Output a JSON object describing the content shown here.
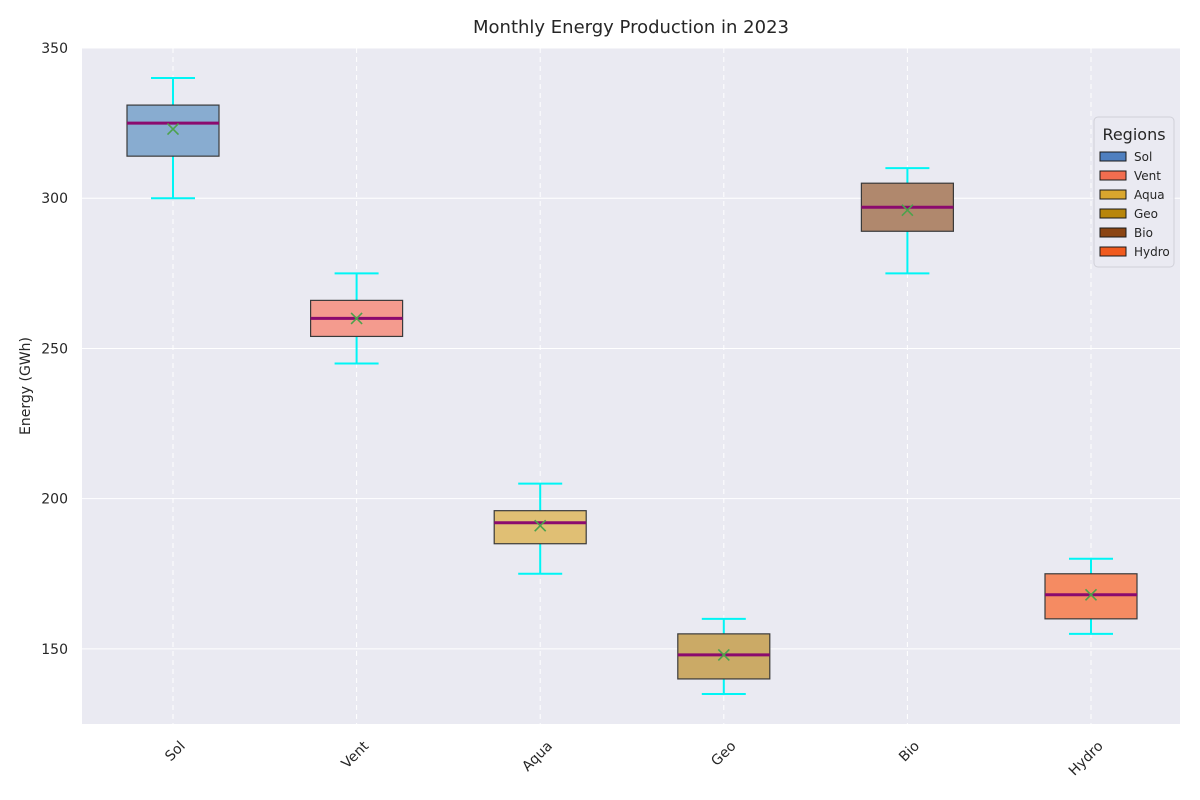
{
  "chart_data": {
    "type": "box",
    "title": "Monthly Energy Production in 2023",
    "xlabel": "",
    "ylabel": "Energy (GWh)",
    "ylim": [
      125,
      350
    ],
    "yticks": [
      150,
      200,
      250,
      300,
      350
    ],
    "grid": true,
    "legend": {
      "title": "Regions",
      "placement": "right",
      "entries": [
        {
          "name": "Sol",
          "color": "#4f7fbf"
        },
        {
          "name": "Vent",
          "color": "#f26d4f"
        },
        {
          "name": "Aqua",
          "color": "#d9a62e"
        },
        {
          "name": "Geo",
          "color": "#b8860b"
        },
        {
          "name": "Bio",
          "color": "#8b4513"
        },
        {
          "name": "Hydro",
          "color": "#f05a1e"
        }
      ]
    },
    "categories": [
      "Sol",
      "Vent",
      "Aqua",
      "Geo",
      "Bio",
      "Hydro"
    ],
    "boxes": [
      {
        "category": "Sol",
        "min": 300,
        "q1": 314,
        "median": 325,
        "q3": 331,
        "max": 340,
        "mean": 323,
        "color": "#88acd0"
      },
      {
        "category": "Vent",
        "min": 245,
        "q1": 254,
        "median": 260,
        "q3": 266,
        "max": 275,
        "mean": 260,
        "color": "#f49b8e"
      },
      {
        "category": "Aqua",
        "min": 175,
        "q1": 185,
        "median": 192,
        "q3": 196,
        "max": 205,
        "mean": 191,
        "color": "#e0bf74"
      },
      {
        "category": "Geo",
        "min": 135,
        "q1": 140,
        "median": 148,
        "q3": 155,
        "max": 160,
        "mean": 148,
        "color": "#cbaa66"
      },
      {
        "category": "Bio",
        "min": 275,
        "q1": 289,
        "median": 297,
        "q3": 305,
        "max": 310,
        "mean": 296,
        "color": "#b0886d"
      },
      {
        "category": "Hydro",
        "min": 155,
        "q1": 160,
        "median": 168,
        "q3": 175,
        "max": 180,
        "mean": 168,
        "color": "#f58b62"
      }
    ],
    "styles": {
      "whisker_color": "#00f5f5",
      "median_color": "#8b0a6e",
      "mean_marker_color": "#4ca24c",
      "box_edge_color": "#3a3a3a",
      "plot_background": "#eaeaf2",
      "grid_color": "#ffffff"
    }
  }
}
